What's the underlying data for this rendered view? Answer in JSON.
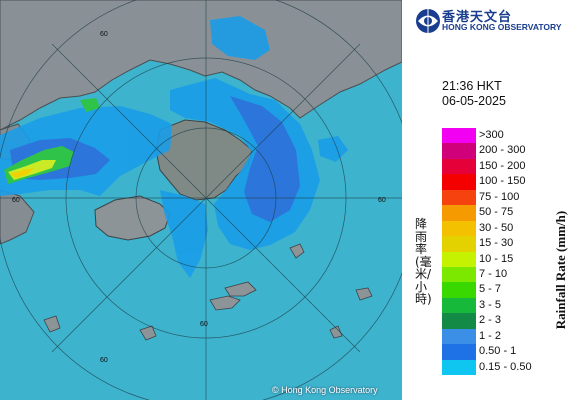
{
  "observatory": {
    "name_zh": "香港天文台",
    "name_en": "HONG KONG OBSERVATORY"
  },
  "timestamp": {
    "time": "21:36 HKT",
    "date": "06-05-2025"
  },
  "legend": {
    "label_zh": "降雨率(毫米/小時)",
    "label_en": "Rainfall Rate (mm/h)",
    "items": [
      {
        "label": ">300",
        "color": "#f200f2"
      },
      {
        "label": "200 - 300",
        "color": "#d0007a"
      },
      {
        "label": "150 - 200",
        "color": "#e5003a"
      },
      {
        "label": "100 - 150",
        "color": "#f50000"
      },
      {
        "label": "75 - 100",
        "color": "#f5420f"
      },
      {
        "label": "50 - 75",
        "color": "#f59a00"
      },
      {
        "label": "30 - 50",
        "color": "#f3c100"
      },
      {
        "label": "15 - 30",
        "color": "#e3d200"
      },
      {
        "label": "10 - 15",
        "color": "#c4f200"
      },
      {
        "label": "7 - 10",
        "color": "#7ce800"
      },
      {
        "label": "5 - 7",
        "color": "#38d800"
      },
      {
        "label": "3 - 5",
        "color": "#17b93a"
      },
      {
        "label": "2 - 3",
        "color": "#138a45"
      },
      {
        "label": "1 - 2",
        "color": "#3b8fe6"
      },
      {
        "label": "0.50 - 1",
        "color": "#1f72e6"
      },
      {
        "label": "0.15 - 0.50",
        "color": "#0fc6f0"
      }
    ]
  },
  "map": {
    "ring_labels": [
      "60",
      "60",
      "60",
      "60",
      "60"
    ],
    "copyright": "© Hong Kong Observatory"
  }
}
